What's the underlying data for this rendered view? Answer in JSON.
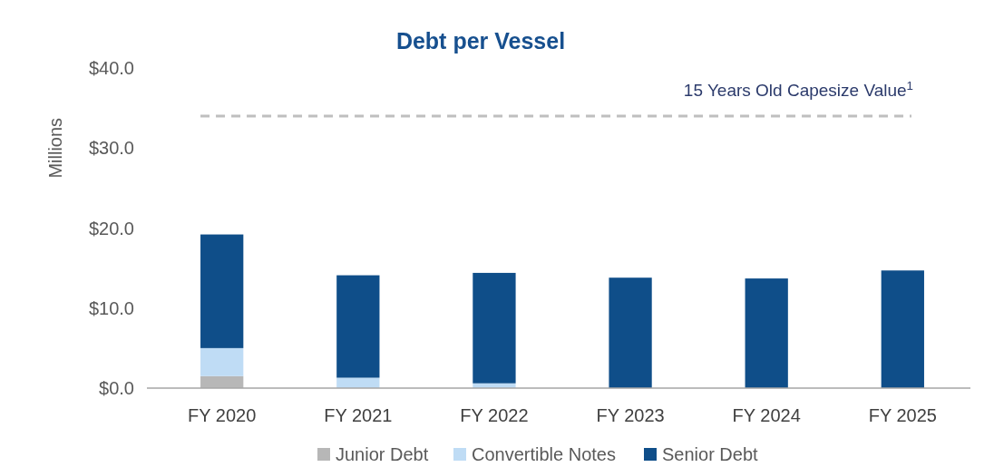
{
  "chart_data": {
    "type": "bar",
    "title": "Debt per Vessel",
    "ylabel": "Millions",
    "stacked": true,
    "legend": "bottom",
    "grid": false,
    "categories": [
      "FY 2020",
      "FY 2021",
      "FY 2022",
      "FY 2023",
      "FY 2024",
      "FY 2025"
    ],
    "series": [
      {
        "name": "Junior Debt",
        "color": "#b7b7b7",
        "values": [
          1.5,
          0,
          0,
          0,
          0,
          0
        ]
      },
      {
        "name": "Convertible Notes",
        "color": "#bfdcf5",
        "values": [
          3.5,
          1.3,
          0.6,
          0,
          0,
          0
        ]
      },
      {
        "name": "Senior Debt",
        "color": "#0f4e89",
        "values": [
          14.2,
          12.8,
          13.8,
          13.8,
          13.7,
          14.7
        ]
      }
    ],
    "ylim": [
      0,
      40
    ],
    "yticks": [
      {
        "value": 0,
        "label": "$0.0"
      },
      {
        "value": 10,
        "label": "$10.0"
      },
      {
        "value": 20,
        "label": "$20.0"
      },
      {
        "value": 30,
        "label": "$30.0"
      },
      {
        "value": 40,
        "label": "$40.0"
      }
    ],
    "ref_lines": [
      {
        "axis": "y",
        "value": 34,
        "label": "15 Years Old Capesize Value$^{1}$",
        "color": "#bfbfbf",
        "line_style": "dashed"
      }
    ]
  }
}
